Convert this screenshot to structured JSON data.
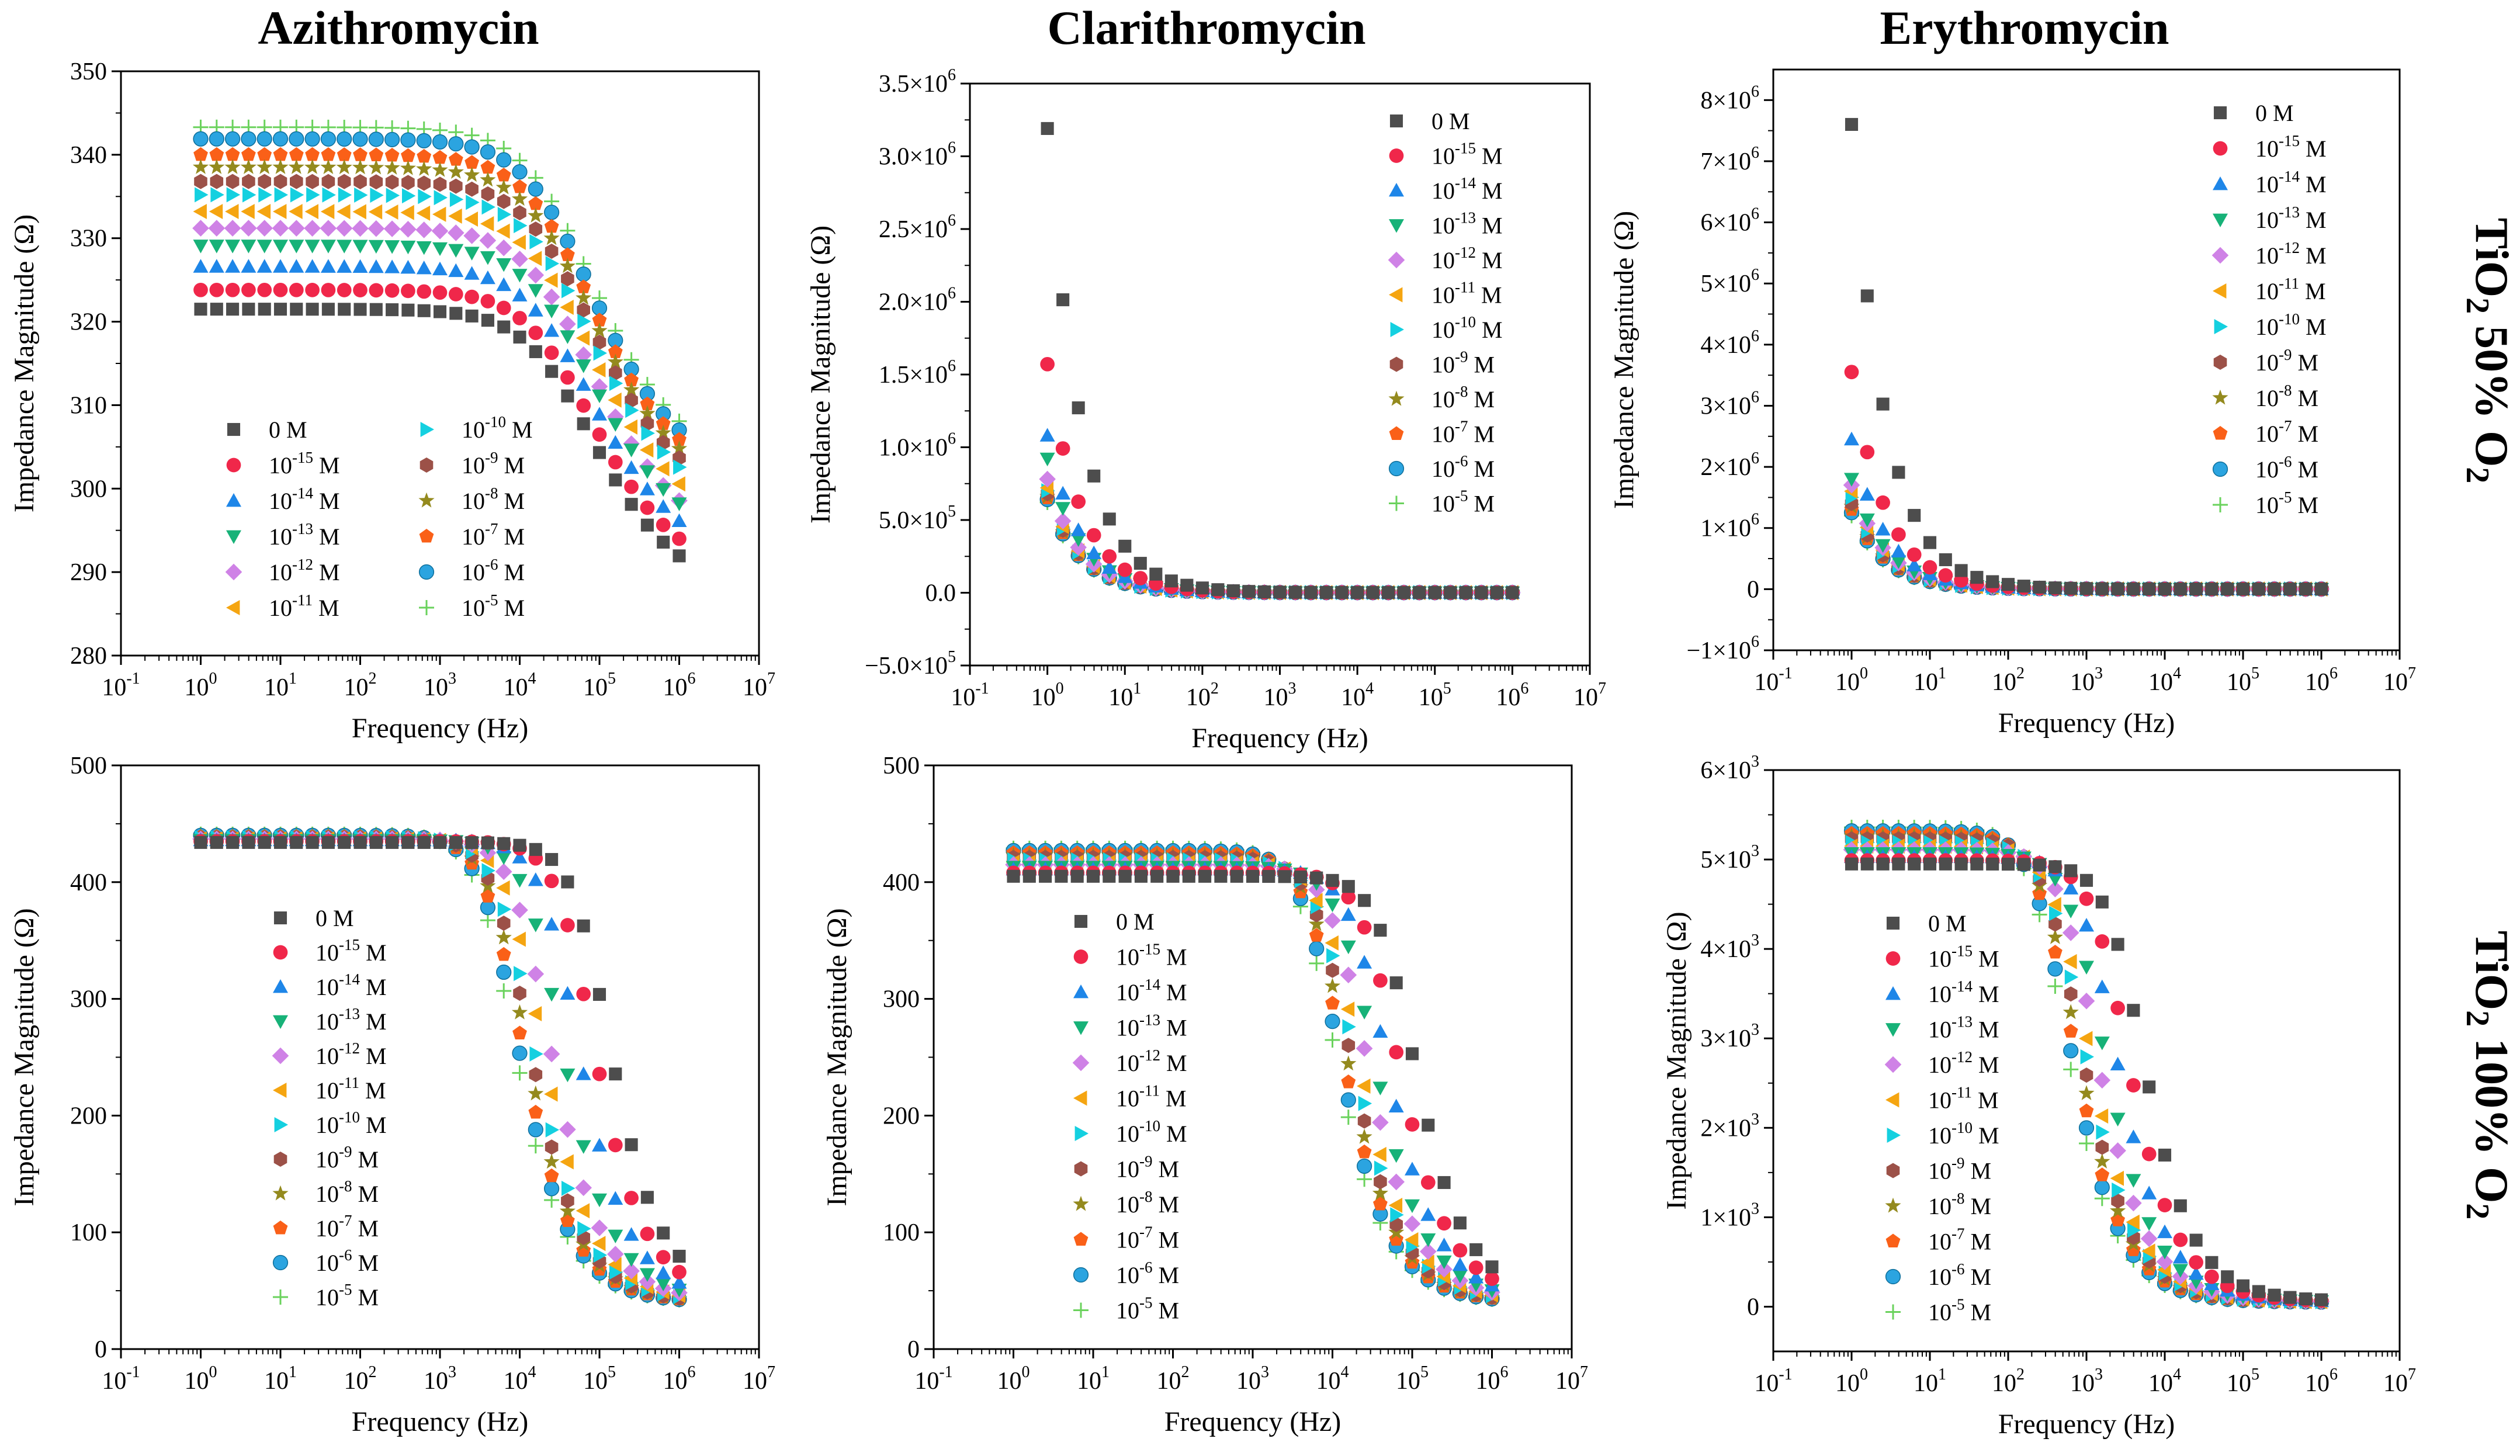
{
  "figure": {
    "column_titles": [
      "Azithromycin",
      "Clarithromycin",
      "Erythromycin"
    ],
    "row_titles": [
      {
        "base": "TiO",
        "sub": "2",
        "rest": " 50% O",
        "sub2": "2"
      },
      {
        "base": "TiO",
        "sub": "2",
        "rest": " 100% O",
        "sub2": "2"
      }
    ]
  },
  "chart_data": [
    {
      "id": "azi-50",
      "type": "scatter",
      "title": "Azithromycin",
      "row": "TiO2 50% O2",
      "xlabel": "Frequency (Hz)",
      "ylabel": "Impedance Magnitude (Ω)",
      "xscale": "log",
      "xlim": [
        0.1,
        10000000
      ],
      "ylim": [
        280,
        350
      ],
      "yticks": [
        280,
        290,
        300,
        310,
        320,
        330,
        340,
        350
      ],
      "ytick_labels": [
        "280",
        "290",
        "300",
        "310",
        "320",
        "330",
        "340",
        "350"
      ],
      "legend": {
        "placement": "bottom-left",
        "columns": 2
      },
      "model": {
        "kind": "lowpass",
        "plateau": [
          321.5,
          323.8,
          326.6,
          329.1,
          331.2,
          333.2,
          335.2,
          336.8,
          338.5,
          340.0,
          341.9,
          343.3
        ],
        "high": [
          286,
          288,
          290,
          292,
          292,
          294,
          296,
          297,
          298,
          299,
          300,
          301
        ],
        "fc_exp": 4.6,
        "n": 0.55
      }
    },
    {
      "id": "cla-50",
      "type": "scatter",
      "title": "Clarithromycin",
      "row": "TiO2 50% O2",
      "xlabel": "Frequency (Hz)",
      "ylabel": "Impedance Magnitude (Ω)",
      "xscale": "log",
      "xlim": [
        0.1,
        10000000
      ],
      "ylim": [
        -500000,
        3500000
      ],
      "yticks": [
        -500000,
        0,
        500000,
        1000000,
        1500000,
        2000000,
        2500000,
        3000000,
        3500000
      ],
      "ytick_labels": [
        "−5.0×10^5",
        "0.0",
        "5.0×10^5",
        "1.0×10^6",
        "1.5×10^6",
        "2.0×10^6",
        "2.5×10^6",
        "3.0×10^6",
        "3.5×10^6"
      ],
      "legend": {
        "placement": "top-right",
        "columns": 1
      },
      "model": {
        "kind": "power",
        "a": [
          3190000,
          1570000,
          1080000,
          920000,
          780000,
          720000,
          700000,
          680000,
          660000,
          650000,
          640000,
          620000
        ],
        "alpha": 1.0,
        "floor": 1000
      }
    },
    {
      "id": "ery-50",
      "type": "scatter",
      "title": "Erythromycin",
      "row": "TiO2 50% O2",
      "xlabel": "Frequency (Hz)",
      "ylabel": "Impedance Magnitude (Ω)",
      "xscale": "log",
      "xlim": [
        0.1,
        10000000
      ],
      "ylim": [
        -1000000,
        8500000
      ],
      "yticks": [
        -1000000,
        0,
        1000000,
        2000000,
        3000000,
        4000000,
        5000000,
        6000000,
        7000000,
        8000000
      ],
      "ytick_labels": [
        "−1×10^6",
        "0",
        "1×10^6",
        "2×10^6",
        "3×10^6",
        "4×10^6",
        "5×10^6",
        "6×10^6",
        "7×10^6",
        "8×10^6"
      ],
      "legend": {
        "placement": "top-right",
        "columns": 1
      },
      "model": {
        "kind": "power",
        "a": [
          7600000,
          3550000,
          2450000,
          1800000,
          1700000,
          1600000,
          1500000,
          1400000,
          1350000,
          1300000,
          1250000,
          1200000
        ],
        "alpha": 1.0,
        "floor": 2000
      }
    },
    {
      "id": "azi-100",
      "type": "scatter",
      "title": "Azithromycin",
      "row": "TiO2 100% O2",
      "xlabel": "Frequency (Hz)",
      "ylabel": "Impedance Magnitude (Ω)",
      "xscale": "log",
      "xlim": [
        0.1,
        10000000
      ],
      "ylim": [
        0,
        500
      ],
      "yticks": [
        0,
        100,
        200,
        300,
        400,
        500
      ],
      "ytick_labels": [
        "0",
        "100",
        "200",
        "300",
        "400",
        "500"
      ],
      "legend": {
        "placement": "center-left",
        "columns": 1
      },
      "model": {
        "kind": "lowpass",
        "plateau": [
          434,
          435,
          436,
          436,
          437,
          437,
          438,
          438,
          439,
          439,
          440,
          441
        ],
        "high": [
          45,
          44,
          43,
          42,
          42,
          41,
          41,
          40,
          40,
          40,
          40,
          40
        ],
        "fc_exp": [
          4.95,
          4.75,
          4.55,
          4.35,
          4.2,
          4.1,
          4.0,
          3.95,
          3.9,
          3.85,
          3.8,
          3.75
        ],
        "n": 1.0
      }
    },
    {
      "id": "cla-100",
      "type": "scatter",
      "title": "Clarithromycin",
      "row": "TiO2 100% O2",
      "xlabel": "Frequency (Hz)",
      "ylabel": "Impedance Magnitude (Ω)",
      "xscale": "log",
      "xlim": [
        0.1,
        10000000
      ],
      "ylim": [
        0,
        500
      ],
      "yticks": [
        0,
        100,
        200,
        300,
        400,
        500
      ],
      "ytick_labels": [
        "0",
        "100",
        "200",
        "300",
        "400",
        "500"
      ],
      "legend": {
        "placement": "center",
        "columns": 1
      },
      "model": {
        "kind": "lowpass",
        "plateau": [
          405,
          408,
          411,
          413,
          415,
          417,
          419,
          421,
          423,
          425,
          427,
          429
        ],
        "high": [
          45,
          44,
          43,
          42,
          42,
          41,
          41,
          40,
          40,
          40,
          40,
          40
        ],
        "fc_exp": [
          4.85,
          4.65,
          4.5,
          4.35,
          4.25,
          4.15,
          4.1,
          4.05,
          4.0,
          3.95,
          3.9,
          3.85
        ],
        "n": 1.0
      }
    },
    {
      "id": "ery-100",
      "type": "scatter",
      "title": "Erythromycin",
      "row": "TiO2 100% O2",
      "xlabel": "Frequency (Hz)",
      "ylabel": "Impedance Magnitude (Ω)",
      "xscale": "log",
      "xlim": [
        0.1,
        10000000
      ],
      "ylim": [
        -500,
        6000
      ],
      "yticks": [
        0,
        1000,
        2000,
        3000,
        4000,
        5000,
        6000
      ],
      "ytick_labels": [
        "0",
        "1×10^3",
        "2×10^3",
        "3×10^3",
        "4×10^3",
        "5×10^3",
        "6×10^3"
      ],
      "legend": {
        "placement": "center-left",
        "columns": 1
      },
      "model": {
        "kind": "lowpass",
        "plateau": [
          4950,
          4990,
          5030,
          5070,
          5110,
          5150,
          5190,
          5230,
          5260,
          5290,
          5320,
          5360
        ],
        "high": [
          60,
          58,
          56,
          55,
          54,
          53,
          52,
          51,
          50,
          50,
          50,
          50
        ],
        "fc_exp": [
          3.55,
          3.35,
          3.2,
          3.05,
          2.95,
          2.85,
          2.8,
          2.75,
          2.7,
          2.65,
          2.6,
          2.55
        ],
        "n": 1.0
      }
    }
  ],
  "x_points_exp": [
    0,
    0.2,
    0.4,
    0.6,
    0.8,
    1.0,
    1.2,
    1.4,
    1.6,
    1.8,
    2.0,
    2.2,
    2.4,
    2.6,
    2.8,
    3.0,
    3.2,
    3.4,
    3.6,
    3.8,
    4.0,
    4.2,
    4.4,
    4.6,
    4.8,
    5.0,
    5.2,
    5.4,
    5.6,
    5.8,
    6.0
  ],
  "xtick_exponents": [
    "-1",
    "0",
    "1",
    "2",
    "3",
    "4",
    "5",
    "6",
    "7"
  ],
  "series": [
    {
      "label": "0 M",
      "exp": "",
      "marker": "square",
      "color": "#4d4d4d"
    },
    {
      "label": "10 M",
      "exp": "-15",
      "marker": "circle",
      "color": "#f0274a"
    },
    {
      "label": "10 M",
      "exp": "-14",
      "marker": "triangle-up",
      "color": "#1e86e8"
    },
    {
      "label": "10 M",
      "exp": "-13",
      "marker": "triangle-down",
      "color": "#17b278"
    },
    {
      "label": "10 M",
      "exp": "-12",
      "marker": "diamond",
      "color": "#cf82e6"
    },
    {
      "label": "10 M",
      "exp": "-11",
      "marker": "triangle-left",
      "color": "#f5a511"
    },
    {
      "label": "10 M",
      "exp": "-10",
      "marker": "triangle-right",
      "color": "#14d0e0"
    },
    {
      "label": "10 M",
      "exp": "-9",
      "marker": "hexagon",
      "color": "#9c5148"
    },
    {
      "label": "10 M",
      "exp": "-8",
      "marker": "star",
      "color": "#948a1e"
    },
    {
      "label": "10 M",
      "exp": "-7",
      "marker": "pentagon",
      "color": "#fa6018"
    },
    {
      "label": "10 M",
      "exp": "-6",
      "marker": "sphere",
      "color": "#2ba4e0"
    },
    {
      "label": "10 M",
      "exp": "-5",
      "marker": "plus",
      "color": "#6ad25c"
    }
  ]
}
